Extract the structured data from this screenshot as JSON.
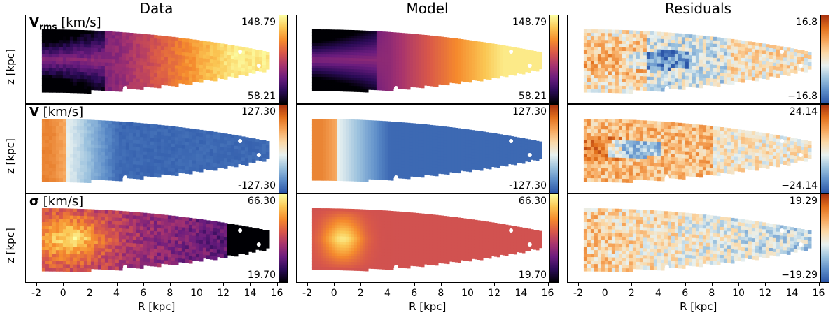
{
  "columns": [
    "Data",
    "Model",
    "Residuals"
  ],
  "rows": [
    {
      "quantity_main": "V",
      "quantity_sub": "rms",
      "unit": " [km/s]",
      "data_range": [
        "148.79",
        "58.21"
      ],
      "resid_range": [
        "16.8",
        "−16.8"
      ],
      "cmap": "sauron_hot"
    },
    {
      "quantity_main": "V",
      "quantity_sub": "",
      "unit": " [km/s]",
      "data_range": [
        "127.30",
        "-127.30"
      ],
      "resid_range": [
        "24.14",
        "−24.14"
      ],
      "cmap": "diverging"
    },
    {
      "quantity_main": "σ",
      "quantity_sub": "",
      "unit": " [km/s]",
      "data_range": [
        "66.30",
        "19.70"
      ],
      "resid_range": [
        "19.29",
        "−19.29"
      ],
      "cmap": "sauron_hot"
    }
  ],
  "axes": {
    "ylabel": "z [kpc]",
    "xlabel": "R [kpc]",
    "xticks": [
      "-2",
      "0",
      "2",
      "4",
      "6",
      "8",
      "10",
      "12",
      "14",
      "16"
    ]
  },
  "colors": {
    "hot": [
      "#000004",
      "#2b0b57",
      "#6a1c7e",
      "#a6336f",
      "#d8574a",
      "#f58a2d",
      "#fbc653",
      "#fcfea4"
    ],
    "div": [
      "#2c56a8",
      "#5c8cc8",
      "#9cc2de",
      "#e8f1f0",
      "#fbd9a8",
      "#f6a55a",
      "#e2701c",
      "#a83210"
    ]
  },
  "chart_data": [
    {
      "type": "heatmap",
      "title": "Data",
      "ylabel": "z [kpc]",
      "quantity": "Vrms [km/s]",
      "vmax": 148.79,
      "vmin": 58.21
    },
    {
      "type": "heatmap",
      "title": "Model",
      "quantity": "Vrms [km/s]",
      "vmax": 148.79,
      "vmin": 58.21
    },
    {
      "type": "heatmap",
      "title": "Residuals",
      "quantity": "Vrms [km/s]",
      "vmax": 16.8,
      "vmin": -16.8
    },
    {
      "type": "heatmap",
      "title": "Data",
      "ylabel": "z [kpc]",
      "quantity": "V [km/s]",
      "vmax": 127.3,
      "vmin": -127.3
    },
    {
      "type": "heatmap",
      "title": "Model",
      "quantity": "V [km/s]",
      "vmax": 127.3,
      "vmin": -127.3
    },
    {
      "type": "heatmap",
      "title": "Residuals",
      "quantity": "V [km/s]",
      "vmax": 24.14,
      "vmin": -24.14
    },
    {
      "type": "heatmap",
      "title": "Data",
      "ylabel": "z [kpc]",
      "xlabel": "R [kpc]",
      "quantity": "σ [km/s]",
      "vmax": 66.3,
      "vmin": 19.7
    },
    {
      "type": "heatmap",
      "title": "Model",
      "xlabel": "R [kpc]",
      "quantity": "σ [km/s]",
      "vmax": 66.3,
      "vmin": 19.7
    },
    {
      "type": "heatmap",
      "title": "Residuals",
      "xlabel": "R [kpc]",
      "quantity": "σ [km/s]",
      "vmax": 19.29,
      "vmin": -19.29
    }
  ]
}
